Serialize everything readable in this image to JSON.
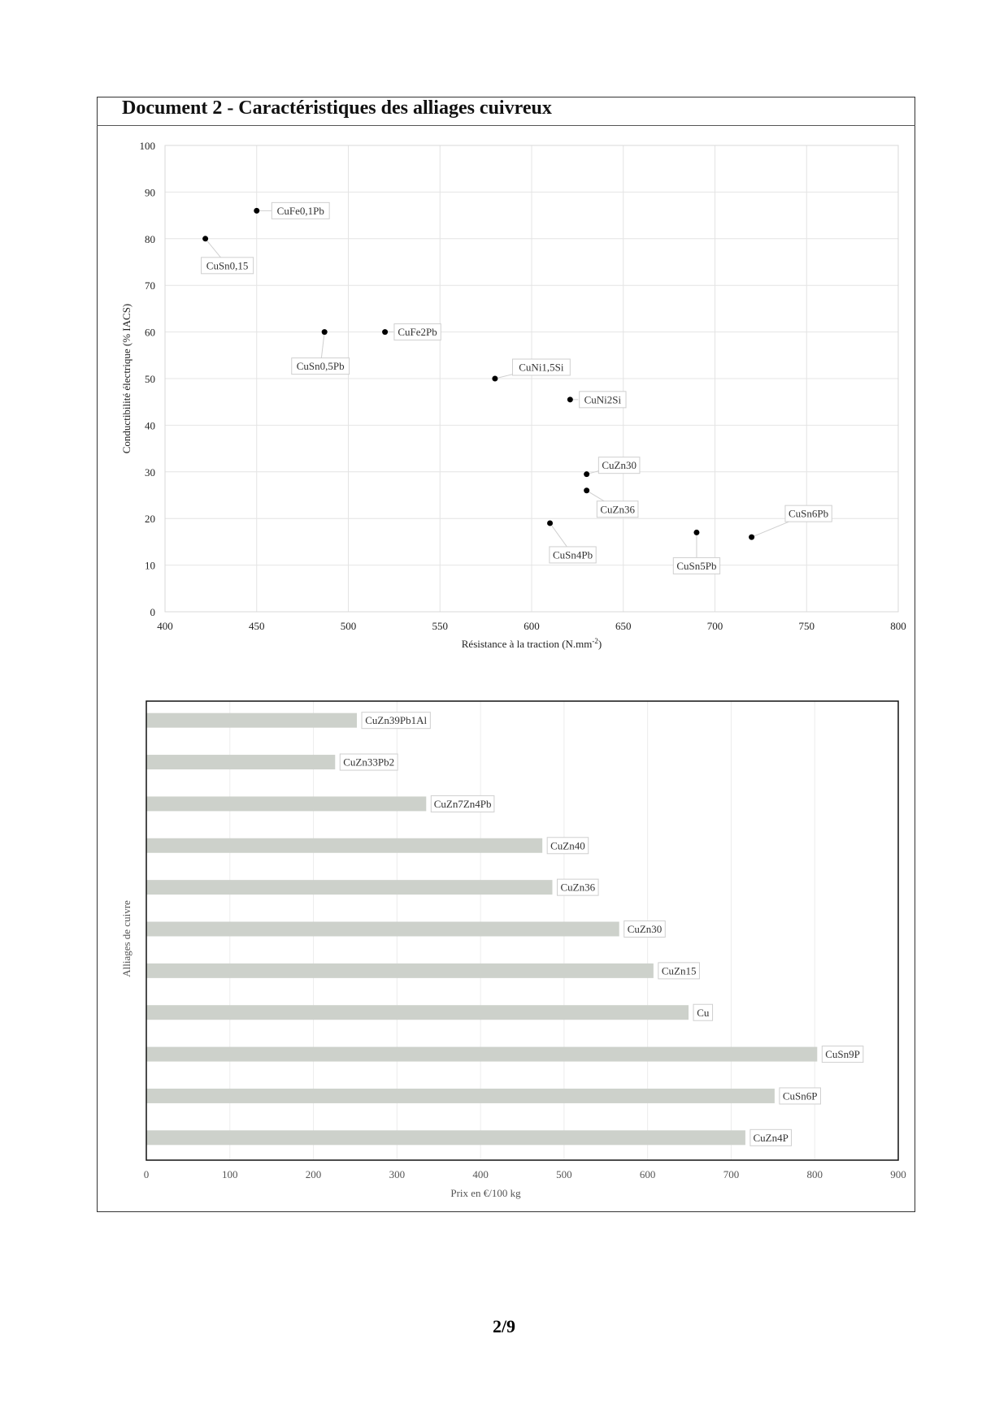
{
  "document": {
    "title": "Document  2 - Caractéristiques des alliages cuivreux",
    "page_number": "2/9"
  },
  "chart_data": [
    {
      "type": "scatter",
      "title": "",
      "xlabel": "Résistance à la traction (N.mm",
      "xlabel_sup": "-2",
      "xlabel_end": ")",
      "ylabel": "Conductibilité électrique (% IACS)",
      "xlim": [
        400,
        800
      ],
      "ylim": [
        0,
        100
      ],
      "xticks": [
        "400",
        "450",
        "500",
        "550",
        "600",
        "650",
        "700",
        "750",
        "800"
      ],
      "yticks": [
        "0",
        "10",
        "20",
        "30",
        "40",
        "50",
        "60",
        "70",
        "80",
        "90",
        "100"
      ],
      "grid": true,
      "points": [
        {
          "label": "CuFe0,1Pb",
          "x": 450,
          "y": 86
        },
        {
          "label": "CuSn0,15",
          "x": 422,
          "y": 80
        },
        {
          "label": "CuSn0,5Pb",
          "x": 487,
          "y": 60
        },
        {
          "label": "CuFe2Pb",
          "x": 520,
          "y": 60
        },
        {
          "label": "CuNi1,5Si",
          "x": 580,
          "y": 50
        },
        {
          "label": "CuNi2Si",
          "x": 621,
          "y": 45.5
        },
        {
          "label": "CuZn30",
          "x": 630,
          "y": 29.5
        },
        {
          "label": "CuZn36",
          "x": 630,
          "y": 26
        },
        {
          "label": "CuSn4Pb",
          "x": 610,
          "y": 19
        },
        {
          "label": "CuSn5Pb",
          "x": 690,
          "y": 17
        },
        {
          "label": "CuSn6Pb",
          "x": 720,
          "y": 16
        }
      ]
    },
    {
      "type": "bar",
      "orientation": "horizontal",
      "title": "",
      "xlabel": "Prix en €/100 kg",
      "ylabel": "Alliages de cuivre",
      "xlim": [
        0,
        900
      ],
      "xticks": [
        "0",
        "100",
        "200",
        "300",
        "400",
        "500",
        "600",
        "700",
        "800",
        "900"
      ],
      "grid": true,
      "bar_color": "#cdd1cb",
      "categories": [
        "CuZn39Pb1Al",
        "CuZn33Pb2",
        "CuZn7Zn4Pb",
        "CuZn40",
        "CuZn36",
        "CuZn30",
        "CuZn15",
        "Cu",
        "CuSn9P",
        "CuSn6P",
        "CuZn4P"
      ],
      "values": [
        252,
        226,
        335,
        474,
        486,
        566,
        607,
        649,
        803,
        752,
        717
      ]
    }
  ]
}
